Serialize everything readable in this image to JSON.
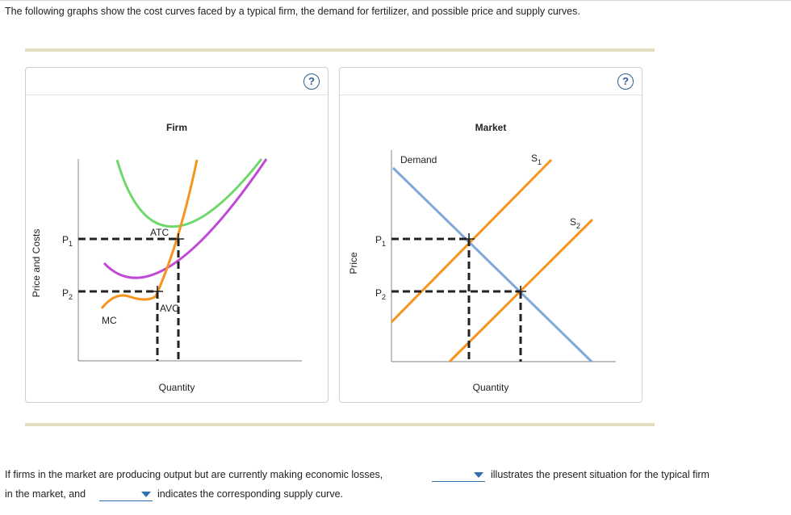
{
  "intro": "The following graphs show the cost curves faced by a typical firm, the demand for fertilizer, and possible price and supply curves.",
  "help_label": "?",
  "firm": {
    "title": "Firm",
    "ylabel": "Price and Costs",
    "xlabel": "Quantity",
    "p1": "P",
    "p1_sub": "1",
    "p2": "P",
    "p2_sub": "2",
    "atc": "ATC",
    "avc": "AVC",
    "mc": "MC"
  },
  "market": {
    "title": "Market",
    "ylabel": "Price",
    "xlabel": "Quantity",
    "p1": "P",
    "p1_sub": "1",
    "p2": "P",
    "p2_sub": "2",
    "demand": "Demand",
    "s1": "S",
    "s1_sub": "1",
    "s2": "S",
    "s2_sub": "2"
  },
  "colors": {
    "atc": "#6ed86a",
    "avc": "#c04ad6",
    "mc": "#f7941d",
    "demand": "#7fa9d8",
    "supply": "#f7941d",
    "dash": "#222222",
    "axis": "#9a9a9a"
  },
  "question": {
    "part1": "If firms in the market are producing output but are currently making economic losses,",
    "part2": "illustrates the present situation for the typical firm",
    "part3": "in the market, and",
    "part4": "indicates the corresponding supply curve."
  }
}
